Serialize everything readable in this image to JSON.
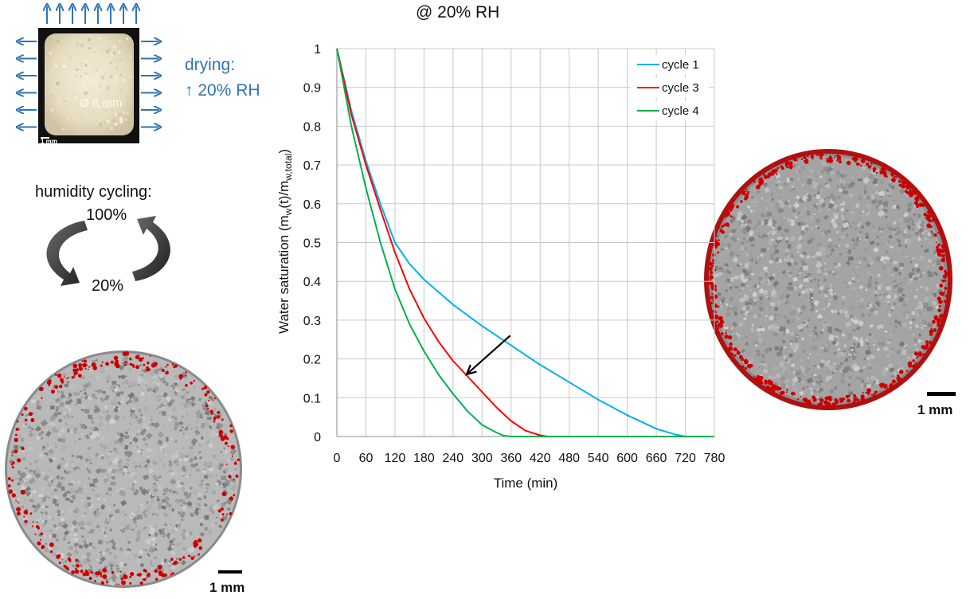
{
  "chart_data": {
    "type": "line",
    "title": "@ 20% RH",
    "xlabel": "Time (min)",
    "ylabel": "Water saturation (m_w(t)/m_w,total)",
    "ylabel_parts": {
      "a": "Water saturation (m",
      "s1": "w",
      "b": "(t)/m",
      "s2": "w,total",
      "c": ")"
    },
    "x_ticks": [
      0,
      60,
      120,
      180,
      240,
      300,
      360,
      420,
      480,
      540,
      600,
      660,
      720,
      780
    ],
    "y_ticks": [
      0,
      0.1,
      0.2,
      0.3,
      0.4,
      0.5,
      0.6,
      0.7,
      0.8,
      0.9,
      1
    ],
    "xlim": [
      0,
      780
    ],
    "ylim": [
      0,
      1
    ],
    "grid": true,
    "legend_position": "top-right",
    "series": [
      {
        "name": "cycle 1",
        "color": "#00b0f0",
        "x": [
          0,
          30,
          60,
          90,
          120,
          150,
          180,
          240,
          300,
          360,
          420,
          480,
          540,
          600,
          660,
          700,
          720,
          780
        ],
        "y": [
          1.0,
          0.84,
          0.71,
          0.6,
          0.5,
          0.445,
          0.405,
          0.34,
          0.285,
          0.235,
          0.185,
          0.14,
          0.095,
          0.055,
          0.02,
          0.005,
          0.0,
          0.0
        ]
      },
      {
        "name": "cycle 3",
        "color": "#ff0000",
        "x": [
          0,
          30,
          60,
          90,
          120,
          150,
          180,
          210,
          240,
          270,
          300,
          330,
          360,
          390,
          420,
          435,
          450,
          780
        ],
        "y": [
          1.0,
          0.83,
          0.7,
          0.585,
          0.475,
          0.38,
          0.305,
          0.245,
          0.195,
          0.155,
          0.115,
          0.075,
          0.04,
          0.015,
          0.003,
          0.0,
          0.0,
          0.0
        ]
      },
      {
        "name": "cycle 4",
        "color": "#00b050",
        "x": [
          0,
          30,
          60,
          90,
          120,
          150,
          180,
          210,
          240,
          270,
          300,
          330,
          345,
          360,
          780
        ],
        "y": [
          1.0,
          0.8,
          0.64,
          0.5,
          0.38,
          0.29,
          0.22,
          0.16,
          0.11,
          0.065,
          0.03,
          0.01,
          0.002,
          0.0,
          0.0
        ]
      }
    ],
    "annotation_arrow": {
      "from": [
        358,
        0.26
      ],
      "to": [
        268,
        0.16
      ]
    }
  },
  "figure": {
    "drying_label": "drying:",
    "drying_rh": "↑  20% RH",
    "sample_diameter": "Ø 8 mm",
    "sample_scale": "1 mm",
    "cycling_label": "humidity cycling:",
    "cycle_high": "100%",
    "cycle_low": "20%",
    "scalebar_left": "1 mm",
    "scalebar_right": "1 mm",
    "arrow_color": "#2e75b6",
    "damage_color": "#cc0000"
  }
}
